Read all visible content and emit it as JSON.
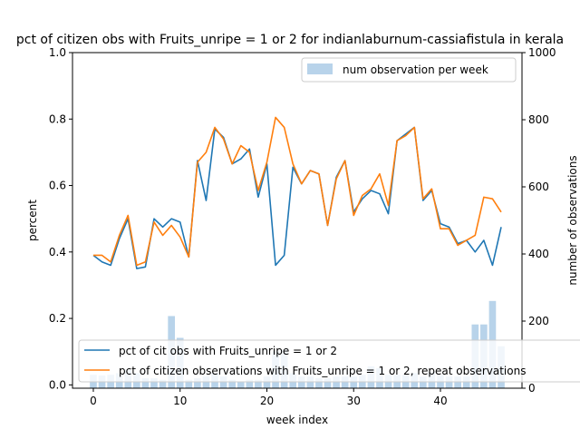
{
  "chart_data": {
    "type": "bar+line",
    "title": "pct of citizen obs with Fruits_unripe = 1 or 2 for indianlaburnum-cassiafistula in kerala",
    "xlabel": "week index",
    "ylabel_left": "percent",
    "ylabel_right": "number of observations",
    "xlim": [
      -2.4,
      49.4
    ],
    "ylim_left": [
      -0.01,
      1.0
    ],
    "ylim_right": [
      0,
      1000
    ],
    "x_ticks": [
      0,
      10,
      20,
      30,
      40
    ],
    "y_left_ticks": [
      "0.0",
      "0.2",
      "0.4",
      "0.6",
      "0.8",
      "1.0"
    ],
    "y_right_ticks": [
      "0",
      "200",
      "400",
      "600",
      "800",
      "1000"
    ],
    "grid": false,
    "legend_top": {
      "location": "top-right",
      "entries": [
        "num observation per week"
      ]
    },
    "legend_bottom": {
      "location": "bottom-left",
      "entries": [
        "pct of cit obs with Fruits_unripe = 1 or 2",
        "pct of citizen observations with Fruits_unripe = 1 or 2, repeat observations"
      ]
    },
    "bar_color": "#b8d3ea",
    "series_colors": [
      "#1f77b4",
      "#ff7f0e"
    ],
    "bars": {
      "name": "num observation per week",
      "x": [
        0,
        1,
        2,
        3,
        4,
        5,
        6,
        7,
        8,
        9,
        10,
        11,
        12,
        13,
        14,
        15,
        16,
        17,
        18,
        19,
        20,
        21,
        22,
        23,
        24,
        25,
        26,
        27,
        28,
        29,
        30,
        31,
        32,
        33,
        34,
        35,
        36,
        37,
        38,
        39,
        40,
        41,
        42,
        43,
        44,
        45,
        46,
        47
      ],
      "values": [
        40,
        38,
        40,
        45,
        55,
        45,
        30,
        30,
        25,
        215,
        150,
        25,
        30,
        35,
        45,
        35,
        25,
        20,
        25,
        25,
        35,
        110,
        115,
        45,
        35,
        35,
        30,
        30,
        35,
        35,
        35,
        40,
        65,
        60,
        40,
        40,
        40,
        45,
        35,
        50,
        40,
        35,
        35,
        35,
        190,
        190,
        260,
        125
      ]
    },
    "series": [
      {
        "name": "pct of cit obs with Fruits_unripe = 1 or 2",
        "x": [
          0,
          1,
          2,
          3,
          4,
          5,
          6,
          7,
          8,
          9,
          10,
          11,
          12,
          13,
          14,
          15,
          16,
          17,
          18,
          19,
          20,
          21,
          22,
          23,
          24,
          25,
          26,
          27,
          28,
          29,
          30,
          31,
          32,
          33,
          34,
          35,
          36,
          37,
          38,
          39,
          40,
          41,
          42,
          43,
          44,
          45,
          46,
          47
        ],
        "values": [
          0.39,
          0.37,
          0.36,
          0.44,
          0.5,
          0.35,
          0.355,
          0.5,
          0.475,
          0.5,
          0.49,
          0.385,
          0.675,
          0.555,
          0.77,
          0.745,
          0.665,
          0.68,
          0.71,
          0.565,
          0.665,
          0.36,
          0.39,
          0.655,
          0.605,
          0.645,
          0.635,
          0.48,
          0.625,
          0.675,
          0.52,
          0.56,
          0.585,
          0.575,
          0.515,
          0.735,
          0.755,
          0.775,
          0.555,
          0.585,
          0.485,
          0.475,
          0.425,
          0.435,
          0.4,
          0.435,
          0.36,
          0.475
        ]
      },
      {
        "name": "pct of citizen observations with Fruits_unripe = 1 or 2, repeat observations",
        "x": [
          0,
          1,
          2,
          3,
          4,
          5,
          6,
          7,
          8,
          9,
          10,
          11,
          12,
          13,
          14,
          15,
          16,
          17,
          18,
          19,
          20,
          21,
          22,
          23,
          24,
          25,
          26,
          27,
          28,
          29,
          30,
          31,
          32,
          33,
          34,
          35,
          36,
          37,
          38,
          39,
          40,
          41,
          42,
          43,
          44,
          45,
          46,
          47
        ],
        "values": [
          0.39,
          0.39,
          0.37,
          0.45,
          0.51,
          0.36,
          0.37,
          0.49,
          0.45,
          0.48,
          0.445,
          0.385,
          0.67,
          0.7,
          0.775,
          0.74,
          0.665,
          0.72,
          0.7,
          0.585,
          0.67,
          0.805,
          0.775,
          0.665,
          0.605,
          0.645,
          0.635,
          0.48,
          0.62,
          0.675,
          0.51,
          0.57,
          0.59,
          0.635,
          0.54,
          0.735,
          0.75,
          0.775,
          0.56,
          0.59,
          0.47,
          0.47,
          0.42,
          0.435,
          0.45,
          0.565,
          0.56,
          0.52
        ]
      }
    ]
  }
}
